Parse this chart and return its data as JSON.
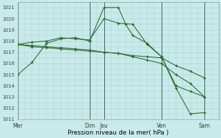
{
  "xlabel": "Pression niveau de la mer( hPa )",
  "bg_color": "#c8eaea",
  "grid_color": "#b0cccc",
  "line_color": "#2d6a2d",
  "vline_color": "#3a6050",
  "ylim": [
    1011,
    1021.5
  ],
  "xlim": [
    0,
    14
  ],
  "yticks": [
    1011,
    1012,
    1013,
    1014,
    1015,
    1016,
    1017,
    1018,
    1019,
    1020,
    1021
  ],
  "xtick_positions": [
    0,
    5,
    6,
    10,
    13
  ],
  "xtick_labels": [
    "Mer",
    "Dim",
    "Jeu",
    "Ven",
    "Sam"
  ],
  "vline_positions": [
    0,
    5,
    6,
    10,
    13
  ],
  "line1_x": [
    0,
    1,
    2,
    3,
    4,
    5,
    6,
    7,
    7.5,
    8,
    9,
    10,
    11,
    12,
    13
  ],
  "line1_y": [
    1015.0,
    1016.1,
    1017.8,
    1018.2,
    1018.3,
    1018.0,
    1021.0,
    1021.0,
    1019.5,
    1018.5,
    1017.8,
    1016.6,
    1014.0,
    1013.5,
    1013.0
  ],
  "line2_x": [
    0,
    1,
    2,
    3,
    4,
    5,
    6,
    7,
    8,
    9,
    10,
    11,
    12,
    13
  ],
  "line2_y": [
    1017.7,
    1017.6,
    1017.5,
    1017.4,
    1017.3,
    1017.2,
    1017.0,
    1016.9,
    1016.7,
    1016.6,
    1016.5,
    1015.8,
    1015.3,
    1014.7
  ],
  "line3_x": [
    0,
    1,
    2,
    3,
    4,
    5,
    6,
    7,
    8,
    9,
    10,
    11,
    12,
    13
  ],
  "line3_y": [
    1017.7,
    1017.9,
    1018.0,
    1018.3,
    1018.2,
    1018.1,
    1020.0,
    1019.6,
    1019.5,
    1017.7,
    1016.6,
    1013.8,
    1011.5,
    1011.6
  ],
  "line4_x": [
    0,
    1,
    2,
    3,
    4,
    5,
    6,
    7,
    8,
    9,
    10,
    11,
    12,
    13
  ],
  "line4_y": [
    1017.7,
    1017.5,
    1017.4,
    1017.3,
    1017.2,
    1017.1,
    1017.0,
    1016.9,
    1016.6,
    1016.3,
    1016.0,
    1015.0,
    1014.2,
    1013.0
  ]
}
